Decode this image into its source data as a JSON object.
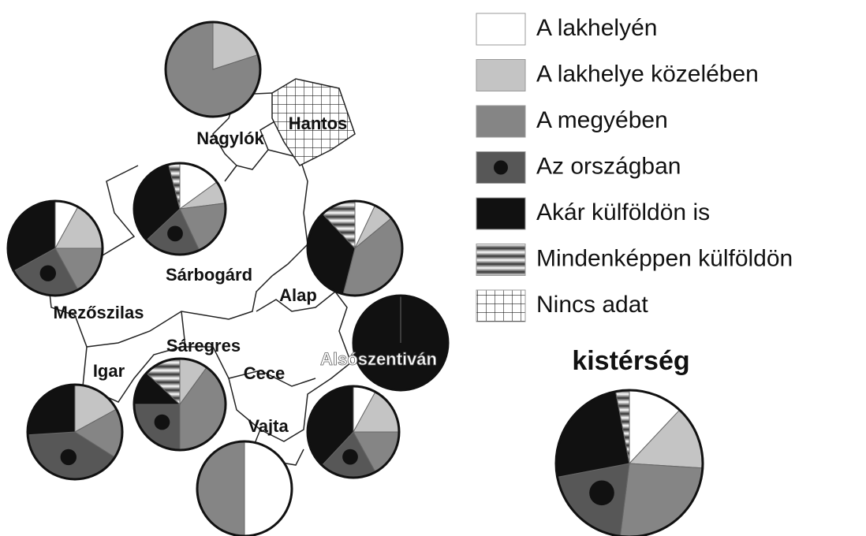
{
  "legend": {
    "items": [
      {
        "label": "A lakhelyén",
        "color": "#ffffff"
      },
      {
        "label": "A lakhelye közelében",
        "color": "#c4c4c4"
      },
      {
        "label": "A megyében",
        "color": "#858585"
      },
      {
        "label": "Az országban",
        "color": "#575757",
        "pattern": "dot"
      },
      {
        "label": "Akár külföldön is",
        "color": "#111111"
      },
      {
        "label": "Mindenképpen külföldön",
        "color": "#888888",
        "pattern": "stripes"
      },
      {
        "label": "Nincs adat",
        "color": "#ffffff",
        "pattern": "grid"
      }
    ]
  },
  "map": {
    "settlements": [
      {
        "name": "Nagylók",
        "values": [
          0,
          20,
          80,
          0,
          0,
          0
        ]
      },
      {
        "name": "Sárbogárd",
        "values": [
          15,
          8,
          20,
          20,
          33,
          4
        ]
      },
      {
        "name": "Mezőszilas",
        "values": [
          8,
          17,
          17,
          25,
          33,
          0
        ]
      },
      {
        "name": "Alap",
        "values": [
          7,
          7,
          40,
          0,
          34,
          12
        ]
      },
      {
        "name": "Alsószentiván",
        "values": [
          0,
          0,
          0,
          0,
          100,
          0
        ]
      },
      {
        "name": "Sáregres",
        "values": [
          0,
          10,
          40,
          25,
          12,
          13
        ]
      },
      {
        "name": "Igar",
        "values": [
          0,
          17,
          17,
          40,
          26,
          0
        ]
      },
      {
        "name": "Cece",
        "values": [
          8,
          17,
          17,
          20,
          38,
          0
        ]
      },
      {
        "name": "Vajta",
        "values": [
          50,
          0,
          50,
          0,
          0,
          0
        ]
      }
    ],
    "no_data": [
      "Hantos"
    ]
  },
  "summary": {
    "title": "kistérség",
    "values": [
      12,
      14,
      26,
      20,
      25,
      3
    ]
  }
}
